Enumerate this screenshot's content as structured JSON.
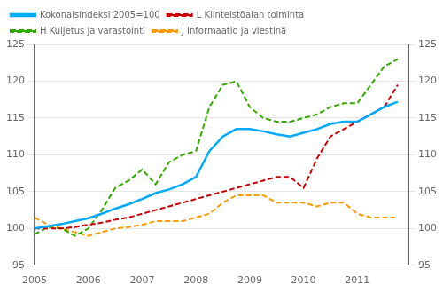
{
  "chart_data": {
    "type": "line",
    "x": [
      2005.0,
      2005.25,
      2005.5,
      2005.75,
      2006.0,
      2006.25,
      2006.5,
      2006.75,
      2007.0,
      2007.25,
      2007.5,
      2007.75,
      2008.0,
      2008.25,
      2008.5,
      2008.75,
      2009.0,
      2009.25,
      2009.5,
      2009.75,
      2010.0,
      2010.25,
      2010.5,
      2010.75,
      2011.0,
      2011.25,
      2011.5,
      2011.75
    ],
    "series": [
      {
        "name": "Kokonaisindeksi 2005=100",
        "color": "#00AAFF",
        "line_style": "solid",
        "values": [
          100.0,
          100.3,
          100.6,
          101.0,
          101.4,
          102.0,
          102.7,
          103.3,
          104.0,
          104.8,
          105.3,
          106.0,
          107.0,
          110.5,
          112.5,
          113.5,
          113.5,
          113.2,
          112.8,
          112.5,
          113.0,
          113.5,
          114.2,
          114.5,
          114.5,
          115.5,
          116.5,
          117.2
        ]
      },
      {
        "name": "L Kiinteistöalan toiminta",
        "color": "#CC0000",
        "line_style": "dashed",
        "values": [
          100.0,
          100.0,
          100.0,
          100.2,
          100.5,
          100.8,
          101.2,
          101.5,
          102.0,
          102.5,
          103.0,
          103.5,
          104.0,
          104.5,
          105.0,
          105.5,
          106.0,
          106.5,
          107.0,
          107.0,
          105.5,
          109.5,
          112.5,
          113.5,
          114.5,
          115.5,
          116.5,
          119.5
        ]
      },
      {
        "name": "H Kuljetus ja varastointi",
        "color": "#33AA00",
        "line_style": "dashed",
        "values": [
          99.2,
          100.2,
          100.0,
          99.0,
          100.0,
          102.5,
          105.5,
          106.5,
          108.0,
          106.0,
          109.0,
          110.0,
          110.5,
          116.5,
          119.5,
          120.0,
          116.5,
          115.0,
          114.5,
          114.5,
          115.0,
          115.5,
          116.5,
          117.0,
          117.0,
          119.5,
          122.0,
          123.0
        ]
      },
      {
        "name": "J Informaatio ja viestinä",
        "color": "#FF9900",
        "line_style": "dashed",
        "values": [
          101.5,
          100.5,
          100.0,
          99.5,
          99.0,
          99.5,
          100.0,
          100.2,
          100.5,
          101.0,
          101.0,
          101.0,
          101.5,
          102.0,
          103.5,
          104.5,
          104.5,
          104.5,
          103.5,
          103.5,
          103.5,
          103.0,
          103.5,
          103.5,
          102.0,
          101.5,
          101.5,
          101.5
        ]
      }
    ],
    "xlim": [
      2005.0,
      2011.95
    ],
    "xticks": [
      2005,
      2006,
      2007,
      2008,
      2009,
      2010,
      2011
    ],
    "ylim": [
      95,
      125
    ],
    "yticks": [
      95,
      100,
      105,
      110,
      115,
      120,
      125
    ],
    "y2lim": [
      95,
      125
    ],
    "y2ticks": [
      95,
      100,
      105,
      110,
      115,
      120,
      125
    ],
    "grid": "y",
    "legend": "upper left"
  }
}
